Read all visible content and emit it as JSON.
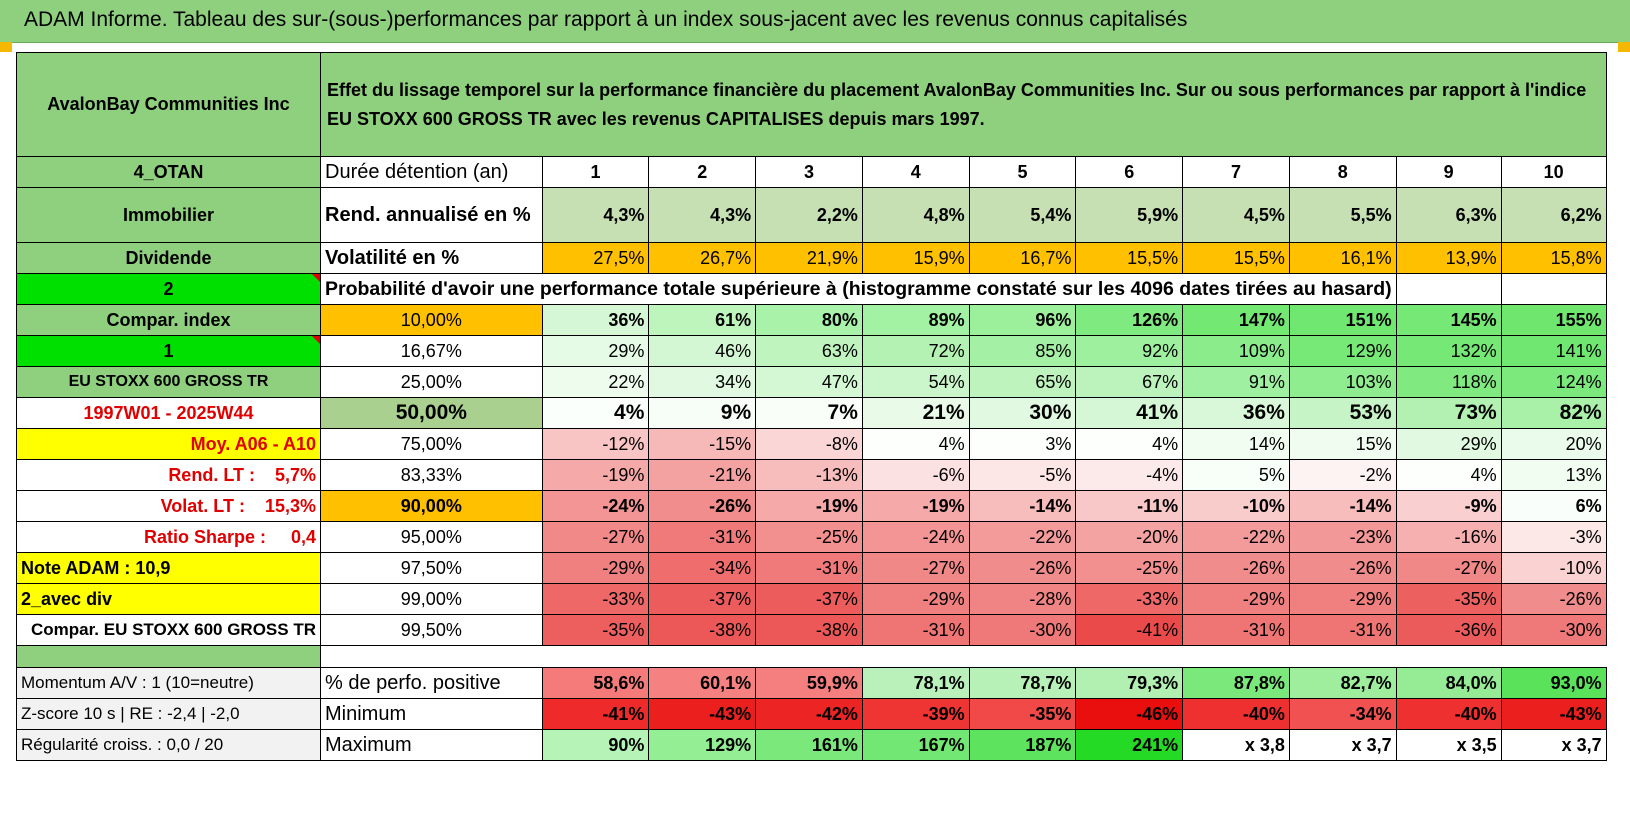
{
  "title": "ADAM Informe. Tableau des sur-(sous-)performances par rapport à un index sous-jacent avec les revenus connus capitalisés",
  "header": {
    "company": "AvalonBay Communities Inc",
    "description": "Effet du lissage temporel sur la performance financière du placement AvalonBay Communities Inc. Sur ou sous performances par rapport à l'indice EU STOXX 600 GROSS TR avec les revenus CAPITALISES depuis mars 1997."
  },
  "rows": {
    "duree": {
      "left": "4_OTAN",
      "label": "Durée détention (an)",
      "values": [
        "1",
        "2",
        "3",
        "4",
        "5",
        "6",
        "7",
        "8",
        "9",
        "10"
      ]
    },
    "rend": {
      "left": "Immobilier",
      "label": "Rend. annualisé en %",
      "values": [
        "4,3%",
        "4,3%",
        "2,2%",
        "4,8%",
        "5,4%",
        "5,9%",
        "4,5%",
        "5,5%",
        "6,3%",
        "6,2%"
      ]
    },
    "vol": {
      "left": "Dividende",
      "label": "Volatilité en %",
      "values": [
        "27,5%",
        "26,7%",
        "21,9%",
        "15,9%",
        "16,7%",
        "15,5%",
        "15,5%",
        "16,1%",
        "13,9%",
        "15,8%"
      ]
    },
    "proba": {
      "left": "2",
      "label": "Probabilité d'avoir une performance totale supérieure à (histogramme constaté sur les 4096 dates tirées au hasard)"
    }
  },
  "percentiles": [
    {
      "left": "Compar. index",
      "pct": "10,00%",
      "values": [
        "36%",
        "61%",
        "80%",
        "89%",
        "96%",
        "126%",
        "147%",
        "151%",
        "145%",
        "155%"
      ]
    },
    {
      "left": "1",
      "pct": "16,67%",
      "values": [
        "29%",
        "46%",
        "63%",
        "72%",
        "85%",
        "92%",
        "109%",
        "129%",
        "132%",
        "141%"
      ]
    },
    {
      "left": "EU STOXX 600 GROSS TR",
      "pct": "25,00%",
      "values": [
        "22%",
        "34%",
        "47%",
        "54%",
        "65%",
        "67%",
        "91%",
        "103%",
        "118%",
        "124%"
      ]
    },
    {
      "left": "1997W01 - 2025W44",
      "pct": "50,00%",
      "values": [
        "4%",
        "9%",
        "7%",
        "21%",
        "30%",
        "41%",
        "36%",
        "53%",
        "73%",
        "82%"
      ]
    },
    {
      "left": "Moy. A06 - A10",
      "pct": "75,00%",
      "values": [
        "-12%",
        "-15%",
        "-8%",
        "4%",
        "3%",
        "4%",
        "14%",
        "15%",
        "29%",
        "20%"
      ]
    },
    {
      "left": "Rend. LT :    5,7%",
      "pct": "83,33%",
      "values": [
        "-19%",
        "-21%",
        "-13%",
        "-6%",
        "-5%",
        "-4%",
        "5%",
        "-2%",
        "4%",
        "13%"
      ]
    },
    {
      "left": "Volat. LT :    15,3%",
      "pct": "90,00%",
      "values": [
        "-24%",
        "-26%",
        "-19%",
        "-19%",
        "-14%",
        "-11%",
        "-10%",
        "-14%",
        "-9%",
        "6%"
      ]
    },
    {
      "left": "Ratio Sharpe :     0,4",
      "pct": "95,00%",
      "values": [
        "-27%",
        "-31%",
        "-25%",
        "-24%",
        "-22%",
        "-20%",
        "-22%",
        "-23%",
        "-16%",
        "-3%"
      ]
    },
    {
      "left": "Note ADAM : 10,9",
      "pct": "97,50%",
      "values": [
        "-29%",
        "-34%",
        "-31%",
        "-27%",
        "-26%",
        "-25%",
        "-26%",
        "-26%",
        "-27%",
        "-10%"
      ]
    },
    {
      "left": "2_avec div",
      "pct": "99,00%",
      "values": [
        "-33%",
        "-37%",
        "-37%",
        "-29%",
        "-28%",
        "-33%",
        "-29%",
        "-29%",
        "-35%",
        "-26%"
      ]
    },
    {
      "left": "Compar. EU STOXX 600 GROSS TR",
      "pct": "99,50%",
      "values": [
        "-35%",
        "-38%",
        "-38%",
        "-31%",
        "-30%",
        "-41%",
        "-31%",
        "-31%",
        "-36%",
        "-30%"
      ]
    }
  ],
  "stats": [
    {
      "left": "Momentum A/V : 1 (10=neutre)",
      "label": "% de perfo. positive",
      "values": [
        "58,6%",
        "60,1%",
        "59,9%",
        "78,1%",
        "78,7%",
        "79,3%",
        "87,8%",
        "82,7%",
        "84,0%",
        "93,0%"
      ]
    },
    {
      "left": "Z-score 10 s | RE : -2,4 | -2,0",
      "label": "Minimum",
      "values": [
        "-41%",
        "-43%",
        "-42%",
        "-39%",
        "-35%",
        "-46%",
        "-40%",
        "-34%",
        "-40%",
        "-43%"
      ]
    },
    {
      "left": "Régularité croiss. : 0,0 / 20",
      "label": "Maximum",
      "values": [
        "90%",
        "129%",
        "161%",
        "167%",
        "187%",
        "241%",
        "x 3,8",
        "x 3,7",
        "x 3,5",
        "x 3,7"
      ]
    }
  ],
  "colors": {
    "title_bg": "#8fd07f",
    "rend_bg": "#c6e0b4",
    "vol_bg": "#ffc000",
    "bright_green": "#00e000",
    "yellow": "#ffff00",
    "red_text": "#e00000"
  },
  "cell_colors": {
    "percentiles": [
      [
        "#d6f7d6",
        "#bdf5bd",
        "#a9f2a9",
        "#a3f1a3",
        "#9cf09c",
        "#7fea7f",
        "#73e873",
        "#70e770",
        "#75e875",
        "#6fe76f"
      ],
      [
        "#e6fbe6",
        "#d3f7d3",
        "#bff4bf",
        "#b3f2b3",
        "#a4f0a4",
        "#9eef9e",
        "#8aec8a",
        "#77e977",
        "#75e875",
        "#70e770"
      ],
      [
        "#eefcee",
        "#e1f9e1",
        "#d4f7d4",
        "#cbf5cb",
        "#bef3be",
        "#bcf3bc",
        "#9ff0a0",
        "#8fed8f",
        "#80ea80",
        "#7be97b"
      ],
      [
        "#fbfffb",
        "#f7fef7",
        "#f9fef9",
        "#e9fae9",
        "#e0f9e0",
        "#d5f7d5",
        "#d9f8d9",
        "#c6f4c6",
        "#b2f1b2",
        "#a9f0a9"
      ],
      [
        "#f8c4c4",
        "#f7b8b8",
        "#fad6d6",
        "#fcfffc",
        "#fdfffd",
        "#fcfffc",
        "#f2fdf2",
        "#f1fcf1",
        "#e1f9e1",
        "#ebfbeb"
      ],
      [
        "#f5a9a9",
        "#f4a1a1",
        "#f7bcbc",
        "#fbe1e1",
        "#fce6e6",
        "#fceaea",
        "#f8fef8",
        "#fef3f3",
        "#fcfffc",
        "#f2fdf2"
      ],
      [
        "#f39595",
        "#f28d8d",
        "#f5a9a9",
        "#f5a9a9",
        "#f7bcbc",
        "#f8c8c8",
        "#f9cccc",
        "#f7bcbc",
        "#facfcf",
        "#fafefa"
      ],
      [
        "#f18989",
        "#f07a7a",
        "#f29090",
        "#f39595",
        "#f39b9b",
        "#f4a3a3",
        "#f39b9b",
        "#f39898",
        "#f6b0b0",
        "#fde8e8"
      ],
      [
        "#f07f7f",
        "#ef6d6d",
        "#f07a7a",
        "#f18888",
        "#f18c8c",
        "#f29090",
        "#f18c8c",
        "#f18c8c",
        "#f18888",
        "#fad2d2"
      ],
      [
        "#ee6868",
        "#ed5c5c",
        "#ed5c5c",
        "#f07f7f",
        "#f08383",
        "#ee6868",
        "#f07f7f",
        "#f07f7f",
        "#ed6060",
        "#f18c8c"
      ],
      [
        "#ed5f5f",
        "#ec5858",
        "#ec5858",
        "#ef7474",
        "#ef7979",
        "#eb4a4a",
        "#ef7474",
        "#ef7474",
        "#ec5b5b",
        "#ef7979"
      ]
    ],
    "stats": [
      [
        "#f57b7b",
        "#f58181",
        "#f57f7f",
        "#baf1ba",
        "#b7f1b7",
        "#b2f0b2",
        "#7ae87a",
        "#9eee9e",
        "#95ec95",
        "#5ae25a"
      ],
      [
        "#ee2a2a",
        "#ec1f1f",
        "#ed2424",
        "#ef3434",
        "#f14848",
        "#ea0f0f",
        "#ef3030",
        "#f25151",
        "#ef3030",
        "#ec1f1f"
      ],
      [
        "#b6f3b6",
        "#94ee94",
        "#7ae87a",
        "#73e773",
        "#5ee35e",
        "#25da25",
        "#ffffff",
        "#ffffff",
        "#ffffff",
        "#ffffff"
      ]
    ]
  }
}
